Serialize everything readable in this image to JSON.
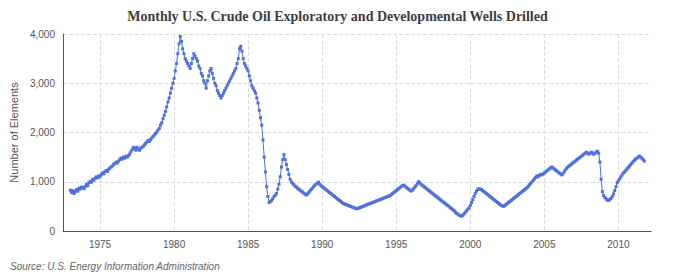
{
  "chart_data": {
    "type": "line",
    "title": "Monthly U.S. Crude Oil Exploratory and Developmental Wells Drilled",
    "ylabel": "Number of Elements",
    "annotations": [
      "Source: U.S. Energy Information Administration"
    ],
    "marker": "square",
    "grid": true,
    "xlim": [
      1972.5,
      2012.2
    ],
    "xticks": [
      1975,
      1980,
      1985,
      1990,
      1995,
      2000,
      2005,
      2010
    ],
    "ylim": [
      0,
      4000
    ],
    "yticks": [
      0,
      {
        "value": 1000,
        "label": "1,000"
      },
      {
        "value": 2000,
        "label": "2,000"
      },
      {
        "value": 3000,
        "label": "3,000"
      },
      {
        "value": 4000,
        "label": "4,000"
      }
    ],
    "x": [
      1973.0,
      1973.083,
      1973.167,
      1973.25,
      1973.333,
      1973.417,
      1973.5,
      1973.583,
      1973.667,
      1973.75,
      1973.833,
      1973.917,
      1974.0,
      1974.083,
      1974.167,
      1974.25,
      1974.333,
      1974.417,
      1974.5,
      1974.583,
      1974.667,
      1974.75,
      1974.833,
      1974.917,
      1975.0,
      1975.083,
      1975.167,
      1975.25,
      1975.333,
      1975.417,
      1975.5,
      1975.583,
      1975.667,
      1975.75,
      1975.833,
      1975.917,
      1976.0,
      1976.083,
      1976.167,
      1976.25,
      1976.333,
      1976.417,
      1976.5,
      1976.583,
      1976.667,
      1976.75,
      1976.833,
      1976.917,
      1977.0,
      1977.083,
      1977.167,
      1977.25,
      1977.333,
      1977.417,
      1977.5,
      1977.583,
      1977.667,
      1977.75,
      1977.833,
      1977.917,
      1978.0,
      1978.083,
      1978.167,
      1978.25,
      1978.333,
      1978.417,
      1978.5,
      1978.583,
      1978.667,
      1978.75,
      1978.833,
      1978.917,
      1979.0,
      1979.083,
      1979.167,
      1979.25,
      1979.333,
      1979.417,
      1979.5,
      1979.583,
      1979.667,
      1979.75,
      1979.833,
      1979.917,
      1980.0,
      1980.083,
      1980.167,
      1980.25,
      1980.333,
      1980.417,
      1980.5,
      1980.583,
      1980.667,
      1980.75,
      1980.833,
      1980.917,
      1981.0,
      1981.083,
      1981.167,
      1981.25,
      1981.333,
      1981.417,
      1981.5,
      1981.583,
      1981.667,
      1981.75,
      1981.833,
      1981.917,
      1982.0,
      1982.083,
      1982.167,
      1982.25,
      1982.333,
      1982.417,
      1982.5,
      1982.583,
      1982.667,
      1982.75,
      1982.833,
      1982.917,
      1983.0,
      1983.083,
      1983.167,
      1983.25,
      1983.333,
      1983.417,
      1983.5,
      1983.583,
      1983.667,
      1983.75,
      1983.833,
      1983.917,
      1984.0,
      1984.083,
      1984.167,
      1984.25,
      1984.333,
      1984.417,
      1984.5,
      1984.583,
      1984.667,
      1984.75,
      1984.833,
      1984.917,
      1985.0,
      1985.083,
      1985.167,
      1985.25,
      1985.333,
      1985.417,
      1985.5,
      1985.583,
      1985.667,
      1985.75,
      1985.833,
      1985.917,
      1986.0,
      1986.083,
      1986.167,
      1986.25,
      1986.333,
      1986.417,
      1986.5,
      1986.583,
      1986.667,
      1986.75,
      1986.833,
      1986.917,
      1987.0,
      1987.083,
      1987.167,
      1987.25,
      1987.333,
      1987.417,
      1987.5,
      1987.583,
      1987.667,
      1987.75,
      1987.833,
      1987.917,
      1988.0,
      1988.083,
      1988.167,
      1988.25,
      1988.333,
      1988.417,
      1988.5,
      1988.583,
      1988.667,
      1988.75,
      1988.833,
      1988.917,
      1989.0,
      1989.083,
      1989.167,
      1989.25,
      1989.333,
      1989.417,
      1989.5,
      1989.583,
      1989.667,
      1989.75,
      1989.833,
      1989.917,
      1990.0,
      1990.083,
      1990.167,
      1990.25,
      1990.333,
      1990.417,
      1990.5,
      1990.583,
      1990.667,
      1990.75,
      1990.833,
      1990.917,
      1991.0,
      1991.083,
      1991.167,
      1991.25,
      1991.333,
      1991.417,
      1991.5,
      1991.583,
      1991.667,
      1991.75,
      1991.833,
      1991.917,
      1992.0,
      1992.083,
      1992.167,
      1992.25,
      1992.333,
      1992.417,
      1992.5,
      1992.583,
      1992.667,
      1992.75,
      1992.833,
      1992.917,
      1993.0,
      1993.083,
      1993.167,
      1993.25,
      1993.333,
      1993.417,
      1993.5,
      1993.583,
      1993.667,
      1993.75,
      1993.833,
      1993.917,
      1994.0,
      1994.083,
      1994.167,
      1994.25,
      1994.333,
      1994.417,
      1994.5,
      1994.583,
      1994.667,
      1994.75,
      1994.833,
      1994.917,
      1995.0,
      1995.083,
      1995.167,
      1995.25,
      1995.333,
      1995.417,
      1995.5,
      1995.583,
      1995.667,
      1995.75,
      1995.833,
      1995.917,
      1996.0,
      1996.083,
      1996.167,
      1996.25,
      1996.333,
      1996.417,
      1996.5,
      1996.583,
      1996.667,
      1996.75,
      1996.833,
      1996.917,
      1997.0,
      1997.083,
      1997.167,
      1997.25,
      1997.333,
      1997.417,
      1997.5,
      1997.583,
      1997.667,
      1997.75,
      1997.833,
      1997.917,
      1998.0,
      1998.083,
      1998.167,
      1998.25,
      1998.333,
      1998.417,
      1998.5,
      1998.583,
      1998.667,
      1998.75,
      1998.833,
      1998.917,
      1999.0,
      1999.083,
      1999.167,
      1999.25,
      1999.333,
      1999.417,
      1999.5,
      1999.583,
      1999.667,
      1999.75,
      1999.833,
      1999.917,
      2000.0,
      2000.083,
      2000.167,
      2000.25,
      2000.333,
      2000.417,
      2000.5,
      2000.583,
      2000.667,
      2000.75,
      2000.833,
      2000.917,
      2001.0,
      2001.083,
      2001.167,
      2001.25,
      2001.333,
      2001.417,
      2001.5,
      2001.583,
      2001.667,
      2001.75,
      2001.833,
      2001.917,
      2002.0,
      2002.083,
      2002.167,
      2002.25,
      2002.333,
      2002.417,
      2002.5,
      2002.583,
      2002.667,
      2002.75,
      2002.833,
      2002.917,
      2003.0,
      2003.083,
      2003.167,
      2003.25,
      2003.333,
      2003.417,
      2003.5,
      2003.583,
      2003.667,
      2003.75,
      2003.833,
      2003.917,
      2004.0,
      2004.083,
      2004.167,
      2004.25,
      2004.333,
      2004.417,
      2004.5,
      2004.583,
      2004.667,
      2004.75,
      2004.833,
      2004.917,
      2005.0,
      2005.083,
      2005.167,
      2005.25,
      2005.333,
      2005.417,
      2005.5,
      2005.583,
      2005.667,
      2005.75,
      2005.833,
      2005.917,
      2006.0,
      2006.083,
      2006.167,
      2006.25,
      2006.333,
      2006.417,
      2006.5,
      2006.583,
      2006.667,
      2006.75,
      2006.833,
      2006.917,
      2007.0,
      2007.083,
      2007.167,
      2007.25,
      2007.333,
      2007.417,
      2007.5,
      2007.583,
      2007.667,
      2007.75,
      2007.833,
      2007.917,
      2008.0,
      2008.083,
      2008.167,
      2008.25,
      2008.333,
      2008.417,
      2008.5,
      2008.583,
      2008.667,
      2008.75,
      2008.833,
      2008.917,
      2009.0,
      2009.083,
      2009.167,
      2009.25,
      2009.333,
      2009.417,
      2009.5,
      2009.583,
      2009.667,
      2009.75,
      2009.833,
      2009.917,
      2010.0,
      2010.083,
      2010.167,
      2010.25,
      2010.333,
      2010.417,
      2010.5,
      2010.583,
      2010.667,
      2010.75,
      2010.833,
      2010.917,
      2011.0,
      2011.083,
      2011.167,
      2011.25,
      2011.333,
      2011.417,
      2011.5,
      2011.583,
      2011.667,
      2011.75
    ],
    "values": [
      830,
      780,
      820,
      760,
      800,
      840,
      810,
      870,
      850,
      890,
      880,
      860,
      900,
      950,
      920,
      980,
      1010,
      990,
      1050,
      1030,
      1070,
      1100,
      1080,
      1120,
      1100,
      1140,
      1180,
      1160,
      1200,
      1230,
      1210,
      1250,
      1280,
      1300,
      1320,
      1350,
      1370,
      1400,
      1380,
      1420,
      1450,
      1480,
      1460,
      1500,
      1480,
      1520,
      1500,
      1530,
      1560,
      1610,
      1650,
      1700,
      1680,
      1640,
      1700,
      1660,
      1640,
      1680,
      1700,
      1720,
      1750,
      1780,
      1810,
      1840,
      1820,
      1860,
      1890,
      1920,
      1950,
      1980,
      2010,
      2050,
      2080,
      2150,
      2200,
      2280,
      2350,
      2430,
      2520,
      2620,
      2700,
      2800,
      2900,
      3000,
      3100,
      3250,
      3400,
      3600,
      3800,
      3950,
      3850,
      3700,
      3600,
      3500,
      3450,
      3400,
      3350,
      3300,
      3400,
      3500,
      3600,
      3550,
      3500,
      3450,
      3350,
      3300,
      3200,
      3150,
      3050,
      3000,
      2900,
      3050,
      3150,
      3250,
      3300,
      3200,
      3100,
      3000,
      2950,
      2850,
      2800,
      2750,
      2700,
      2750,
      2800,
      2850,
      2900,
      2950,
      3000,
      3050,
      3100,
      3150,
      3200,
      3250,
      3300,
      3400,
      3500,
      3700,
      3750,
      3650,
      3500,
      3400,
      3350,
      3300,
      3250,
      3150,
      3050,
      2950,
      2900,
      2850,
      2800,
      2700,
      2600,
      2450,
      2300,
      2150,
      1850,
      1500,
      1200,
      900,
      700,
      580,
      600,
      620,
      660,
      700,
      730,
      760,
      850,
      950,
      1100,
      1300,
      1450,
      1550,
      1450,
      1350,
      1250,
      1150,
      1050,
      1000,
      970,
      940,
      910,
      890,
      870,
      850,
      830,
      810,
      790,
      770,
      750,
      730,
      750,
      780,
      810,
      840,
      870,
      900,
      930,
      950,
      970,
      990,
      950,
      920,
      900,
      880,
      860,
      840,
      820,
      800,
      780,
      760,
      740,
      720,
      700,
      680,
      660,
      640,
      620,
      600,
      580,
      560,
      550,
      540,
      530,
      520,
      510,
      500,
      490,
      480,
      470,
      460,
      450,
      460,
      470,
      480,
      490,
      500,
      510,
      520,
      530,
      540,
      550,
      560,
      570,
      580,
      590,
      600,
      610,
      620,
      630,
      640,
      650,
      660,
      670,
      680,
      690,
      700,
      710,
      720,
      740,
      760,
      780,
      800,
      820,
      840,
      860,
      880,
      900,
      920,
      930,
      910,
      890,
      870,
      850,
      830,
      810,
      830,
      860,
      890,
      920,
      960,
      1000,
      980,
      950,
      930,
      910,
      890,
      870,
      850,
      830,
      810,
      790,
      770,
      750,
      730,
      710,
      690,
      670,
      650,
      630,
      610,
      590,
      570,
      550,
      530,
      510,
      490,
      470,
      450,
      430,
      410,
      380,
      360,
      340,
      320,
      310,
      300,
      320,
      350,
      380,
      410,
      440,
      470,
      520,
      580,
      640,
      700,
      760,
      810,
      840,
      860,
      850,
      840,
      820,
      800,
      780,
      760,
      740,
      720,
      700,
      680,
      660,
      640,
      620,
      600,
      580,
      560,
      540,
      520,
      510,
      500,
      520,
      540,
      560,
      580,
      600,
      620,
      640,
      660,
      680,
      700,
      720,
      740,
      760,
      780,
      800,
      820,
      840,
      860,
      880,
      910,
      940,
      970,
      1000,
      1030,
      1060,
      1090,
      1120,
      1100,
      1130,
      1150,
      1140,
      1160,
      1180,
      1200,
      1220,
      1240,
      1260,
      1280,
      1300,
      1280,
      1260,
      1240,
      1220,
      1200,
      1180,
      1160,
      1140,
      1160,
      1200,
      1240,
      1270,
      1300,
      1320,
      1340,
      1360,
      1380,
      1400,
      1420,
      1440,
      1460,
      1480,
      1500,
      1520,
      1540,
      1560,
      1580,
      1600,
      1580,
      1560,
      1580,
      1600,
      1580,
      1560,
      1580,
      1600,
      1620,
      1580,
      1400,
      1050,
      800,
      720,
      680,
      650,
      630,
      620,
      640,
      660,
      700,
      750,
      820,
      900,
      980,
      1020,
      1060,
      1100,
      1140,
      1180,
      1200,
      1230,
      1260,
      1290,
      1320,
      1350,
      1380,
      1410,
      1440,
      1460,
      1480,
      1500,
      1520,
      1500,
      1480,
      1450,
      1420
    ]
  }
}
